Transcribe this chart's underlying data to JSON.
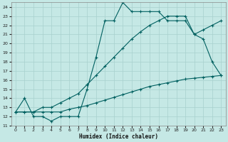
{
  "xlabel": "Humidex (Indice chaleur)",
  "xlim": [
    -0.5,
    23.5
  ],
  "ylim": [
    11,
    24.5
  ],
  "yticks": [
    11,
    12,
    13,
    14,
    15,
    16,
    17,
    18,
    19,
    20,
    21,
    22,
    23,
    24
  ],
  "xticks": [
    0,
    1,
    2,
    3,
    4,
    5,
    6,
    7,
    8,
    9,
    10,
    11,
    12,
    13,
    14,
    15,
    16,
    17,
    18,
    19,
    20,
    21,
    22,
    23
  ],
  "background_color": "#c5e8e5",
  "line_color": "#006060",
  "grid_color": "#a8d0ce",
  "curve1_x": [
    0,
    1,
    2,
    3,
    4,
    5,
    6,
    7,
    8,
    9,
    10,
    11,
    12,
    13,
    14,
    15,
    16,
    17,
    18,
    19,
    20,
    21,
    22,
    23
  ],
  "curve1_y": [
    12.5,
    14.0,
    12.0,
    12.0,
    11.5,
    12.0,
    12.0,
    12.0,
    15.0,
    18.5,
    22.5,
    22.5,
    24.5,
    23.5,
    23.5,
    23.5,
    23.5,
    22.5,
    22.5,
    22.5,
    21.0,
    20.5,
    18.0,
    16.5
  ],
  "curve2_x": [
    0,
    1,
    2,
    3,
    4,
    5,
    6,
    7,
    8,
    9,
    10,
    11,
    12,
    13,
    14,
    15,
    16,
    17,
    18,
    19,
    20,
    21,
    22,
    23
  ],
  "curve2_y": [
    12.5,
    12.5,
    12.5,
    13.0,
    13.0,
    13.5,
    14.0,
    14.5,
    15.5,
    16.5,
    17.5,
    18.5,
    19.5,
    20.5,
    21.3,
    22.0,
    22.5,
    23.0,
    23.0,
    23.0,
    21.0,
    21.5,
    22.0,
    22.5
  ],
  "curve3_x": [
    0,
    1,
    2,
    3,
    4,
    5,
    6,
    7,
    8,
    9,
    10,
    11,
    12,
    13,
    14,
    15,
    16,
    17,
    18,
    19,
    20,
    21,
    22,
    23
  ],
  "curve3_y": [
    12.5,
    12.5,
    12.5,
    12.5,
    12.5,
    12.5,
    12.8,
    13.0,
    13.2,
    13.5,
    13.8,
    14.1,
    14.4,
    14.7,
    15.0,
    15.3,
    15.5,
    15.7,
    15.9,
    16.1,
    16.2,
    16.3,
    16.4,
    16.5
  ]
}
